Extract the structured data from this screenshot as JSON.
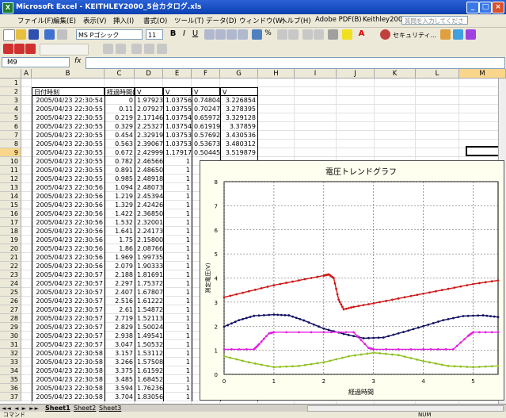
{
  "window": {
    "title": "Microsoft Excel - KEITHLEY2000_5台カタログ.xls"
  },
  "menu": {
    "items": [
      "ファイル(F)",
      "編集(E)",
      "表示(V)",
      "挿入(I)",
      "書式(O)",
      "ツール(T)",
      "データ(D)",
      "ウィンドウ(W)",
      "ヘルプ(H)",
      "Adobe PDF(B)",
      "Keithley2000"
    ],
    "help_placeholder": "質問を入力してください"
  },
  "toolbar": {
    "font_name": "MS Pゴシック",
    "font_size": "11",
    "security_label": "セキュリティ..."
  },
  "formula_bar": {
    "name_box": "M9",
    "fx": "fx",
    "content": ""
  },
  "columns": [
    "A",
    "B",
    "C",
    "D",
    "E",
    "F",
    "G",
    "H",
    "I",
    "J",
    "K",
    "L",
    "M"
  ],
  "rows": [
    "1",
    "2",
    "3",
    "4",
    "5",
    "6",
    "7",
    "8",
    "9",
    "10",
    "11",
    "12",
    "13",
    "14",
    "15",
    "16",
    "17",
    "18",
    "19",
    "20",
    "21",
    "22",
    "23",
    "24",
    "25",
    "26",
    "27",
    "28",
    "29",
    "30",
    "31",
    "32",
    "33",
    "34",
    "35",
    "36",
    "37"
  ],
  "headers": [
    "日付時刻",
    "経過時間(s)",
    "V",
    "V",
    "V",
    "V"
  ],
  "table": [
    [
      "2005/04/23 22:30:54",
      "0",
      "1.979235",
      "1.037565",
      "0.748045",
      "3.226854"
    ],
    [
      "2005/04/23 22:30:55",
      "0.11",
      "2.079277",
      "1.037554",
      "0.702478",
      "3.278395"
    ],
    [
      "2005/04/23 22:30:55",
      "0.219",
      "2.171464",
      "1.037544",
      "0.659727",
      "3.329128"
    ],
    [
      "2005/04/23 22:30:55",
      "0.329",
      "2.253273",
      "1.03754",
      "0.619198",
      "3.37859"
    ],
    [
      "2005/04/23 22:30:55",
      "0.454",
      "2.329195",
      "1.037539",
      "0.576929",
      "3.430536"
    ],
    [
      "2005/04/23 22:30:55",
      "0.563",
      "2.390679",
      "1.037536",
      "0.536734",
      "3.480312"
    ],
    [
      "2005/04/23 22:30:55",
      "0.672",
      "2.429998",
      "1.179174",
      "0.504458",
      "3.519879"
    ],
    [
      "2005/04/23 22:30:55",
      "0.782",
      "2.465667",
      "1",
      "",
      ""
    ],
    [
      "2005/04/23 22:30:55",
      "0.891",
      "2.486505",
      "1",
      "",
      ""
    ],
    [
      "2005/04/23 22:30:55",
      "0.985",
      "2.489189",
      "1",
      "",
      ""
    ],
    [
      "2005/04/23 22:30:56",
      "1.094",
      "2.480738",
      "1",
      "",
      ""
    ],
    [
      "2005/04/23 22:30:56",
      "1.219",
      "2.453944",
      "1",
      "",
      ""
    ],
    [
      "2005/04/23 22:30:56",
      "1.329",
      "2.424264",
      "1",
      "",
      ""
    ],
    [
      "2005/04/23 22:30:56",
      "1.422",
      "2.368501",
      "1",
      "",
      ""
    ],
    [
      "2005/04/23 22:30:56",
      "1.532",
      "2.320014",
      "1",
      "",
      ""
    ],
    [
      "2005/04/23 22:30:56",
      "1.641",
      "2.241732",
      "1",
      "",
      ""
    ],
    [
      "2005/04/23 22:30:56",
      "1.75",
      "2.158002",
      "1",
      "",
      ""
    ],
    [
      "2005/04/23 22:30:56",
      "1.86",
      "2.087666",
      "1",
      "",
      ""
    ],
    [
      "2005/04/23 22:30:56",
      "1.969",
      "1.997354",
      "1",
      "",
      ""
    ],
    [
      "2005/04/23 22:30:56",
      "2.079",
      "1.903336",
      "1",
      "",
      ""
    ],
    [
      "2005/04/23 22:30:57",
      "2.188",
      "1.816912",
      "1",
      "",
      ""
    ],
    [
      "2005/04/23 22:30:57",
      "2.297",
      "1.753727",
      "1",
      "",
      ""
    ],
    [
      "2005/04/23 22:30:57",
      "2.407",
      "1.678071",
      "1",
      "",
      ""
    ],
    [
      "2005/04/23 22:30:57",
      "2.516",
      "1.612222",
      "1",
      "",
      ""
    ],
    [
      "2005/04/23 22:30:57",
      "2.61",
      "1.548726",
      "1",
      "",
      ""
    ],
    [
      "2005/04/23 22:30:57",
      "2.719",
      "1.521137",
      "1",
      "",
      ""
    ],
    [
      "2005/04/23 22:30:57",
      "2.829",
      "1.500245",
      "1",
      "",
      ""
    ],
    [
      "2005/04/23 22:30:57",
      "2.938",
      "1.495415",
      "1",
      "",
      ""
    ],
    [
      "2005/04/23 22:30:57",
      "3.047",
      "1.505325",
      "1",
      "",
      ""
    ],
    [
      "2005/04/23 22:30:58",
      "3.157",
      "1.531124",
      "1",
      "",
      ""
    ],
    [
      "2005/04/23 22:30:58",
      "3.266",
      "1.575088",
      "1",
      "",
      ""
    ],
    [
      "2005/04/23 22:30:58",
      "3.375",
      "1.615925",
      "1",
      "",
      ""
    ],
    [
      "2005/04/23 22:30:58",
      "3.485",
      "1.684523",
      "1",
      "",
      ""
    ],
    [
      "2005/04/23 22:30:58",
      "3.594",
      "1.762367",
      "1",
      "",
      ""
    ],
    [
      "2005/04/23 22:30:58",
      "3.704",
      "1.830569",
      "1",
      "",
      ""
    ]
  ],
  "chart_data": {
    "type": "line",
    "title": "電圧トレンドグラフ",
    "xlabel": "経過時間",
    "ylabel": "測定電圧(V)",
    "xlim": [
      0,
      5.5
    ],
    "ylim": [
      0,
      8
    ],
    "xticks": [
      "0",
      "1",
      "2",
      "3",
      "4",
      "5"
    ],
    "yticks": [
      "0",
      "1",
      "2",
      "3",
      "4",
      "5",
      "6",
      "7",
      "8"
    ],
    "grid": true,
    "series": [
      {
        "color": "#d01818",
        "x": [
          0,
          0.5,
          1,
          1.5,
          2,
          2.1,
          2.2,
          2.3,
          2.4,
          2.6,
          3,
          3.5,
          4,
          4.5,
          5,
          5.5
        ],
        "y": [
          3.2,
          3.45,
          3.7,
          3.9,
          4.1,
          4.15,
          4.0,
          3.1,
          2.7,
          2.8,
          2.95,
          3.15,
          3.35,
          3.55,
          3.75,
          3.9
        ]
      },
      {
        "color": "#101060",
        "x": [
          0,
          0.3,
          0.6,
          1,
          1.3,
          1.6,
          2,
          2.4,
          2.8,
          3.2,
          3.6,
          4,
          4.4,
          4.8,
          5.2,
          5.5
        ],
        "y": [
          1.98,
          2.25,
          2.43,
          2.48,
          2.45,
          2.24,
          1.9,
          1.68,
          1.5,
          1.53,
          1.76,
          2.0,
          2.25,
          2.42,
          2.45,
          2.38
        ]
      },
      {
        "color": "#e020e0",
        "x": [
          0,
          0.6,
          0.7,
          0.9,
          1,
          2,
          2.6,
          2.9,
          3,
          4,
          4.6,
          4.9,
          5,
          5.5
        ],
        "y": [
          1.04,
          1.04,
          1.25,
          1.7,
          1.75,
          1.75,
          1.75,
          1.1,
          1.04,
          1.04,
          1.04,
          1.6,
          1.75,
          1.75
        ]
      },
      {
        "color": "#90c020",
        "x": [
          0,
          0.5,
          1,
          1.5,
          2,
          2.5,
          3,
          3.5,
          4,
          4.5,
          5,
          5.5
        ],
        "y": [
          0.75,
          0.5,
          0.3,
          0.35,
          0.5,
          0.75,
          0.9,
          0.8,
          0.55,
          0.35,
          0.3,
          0.35
        ]
      }
    ]
  },
  "sheets": [
    "Sheet1",
    "Sheet2",
    "Sheet3"
  ],
  "status": {
    "mode": "コマンド",
    "num": "NUM"
  }
}
